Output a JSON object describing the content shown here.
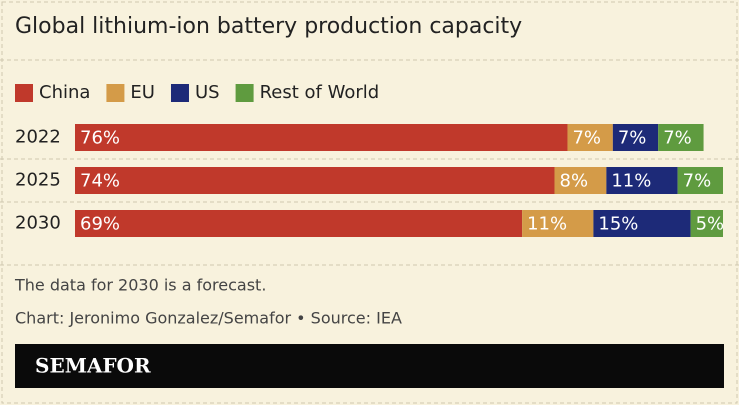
{
  "chart_data": {
    "type": "stacked-bar-horizontal",
    "title": "Global lithium-ion battery production capacity",
    "categories": [
      "2022",
      "2025",
      "2030"
    ],
    "series": [
      {
        "name": "China",
        "color": "#c0392b",
        "values": [
          76,
          74,
          69
        ],
        "value_labels": [
          "76%",
          "74%",
          "69%"
        ]
      },
      {
        "name": "EU",
        "color": "#d49b48",
        "values": [
          7,
          8,
          11
        ],
        "value_labels": [
          "7%",
          "8%",
          "11%"
        ]
      },
      {
        "name": "US",
        "color": "#1d2a78",
        "values": [
          7,
          11,
          15
        ],
        "value_labels": [
          "7%",
          "11%",
          "15%"
        ]
      },
      {
        "name": "Rest of World",
        "color": "#5f9b3f",
        "values": [
          7,
          7,
          5
        ],
        "value_labels": [
          "7%",
          "7%",
          "5%"
        ]
      }
    ],
    "xlim": [
      0,
      100
    ]
  },
  "footer": {
    "notes": [
      "The data for 2030 is a forecast.",
      "Chart: Jeronimo Gonzalez/Semafor • Source: IEA"
    ],
    "brand": "SEMAFOR"
  }
}
